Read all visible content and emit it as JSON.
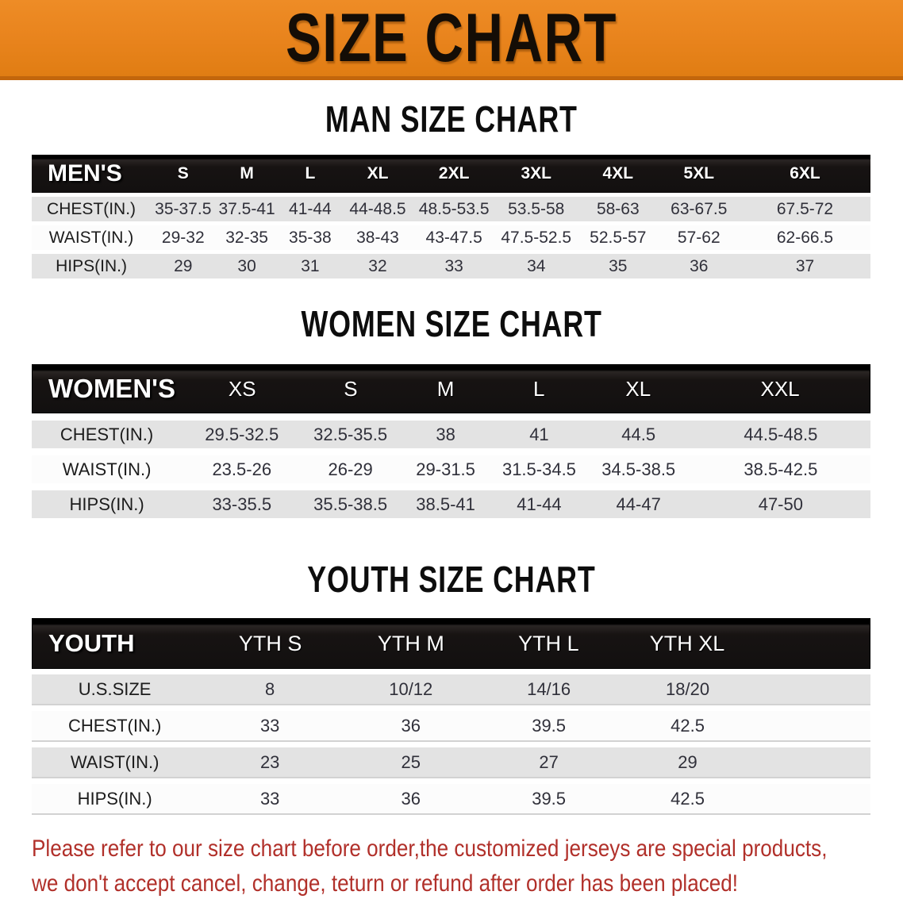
{
  "banner": {
    "title": "SIZE CHART",
    "bg_color": "#E8831C",
    "border_color": "#C2660C",
    "text_color": "#140D06"
  },
  "colors": {
    "header_bar": "#141111",
    "row_gray": "#E3E3E3",
    "row_white": "#FCFCFC",
    "disclaimer_red": "#B1302A"
  },
  "sections": [
    {
      "heading": "MAN SIZE CHART",
      "label": "MEN'S",
      "columns": [
        "S",
        "M",
        "L",
        "XL",
        "2XL",
        "3XL",
        "4XL",
        "5XL",
        "6XL"
      ],
      "rows": [
        {
          "label": "CHEST(IN.)",
          "values": [
            "35-37.5",
            "37.5-41",
            "41-44",
            "44-48.5",
            "48.5-53.5",
            "53.5-58",
            "58-63",
            "63-67.5",
            "67.5-72"
          ]
        },
        {
          "label": "WAIST(IN.)",
          "values": [
            "29-32",
            "32-35",
            "35-38",
            "38-43",
            "43-47.5",
            "47.5-52.5",
            "52.5-57",
            "57-62",
            "62-66.5"
          ]
        },
        {
          "label": "HIPS(IN.)",
          "values": [
            "29",
            "30",
            "31",
            "32",
            "33",
            "34",
            "35",
            "36",
            "37"
          ]
        }
      ]
    },
    {
      "heading": "WOMEN SIZE CHART",
      "label": "WOMEN'S",
      "columns": [
        "XS",
        "S",
        "M",
        "L",
        "XL",
        "XXL"
      ],
      "rows": [
        {
          "label": "CHEST(IN.)",
          "values": [
            "29.5-32.5",
            "32.5-35.5",
            "38",
            "41",
            "44.5",
            "44.5-48.5"
          ]
        },
        {
          "label": "WAIST(IN.)",
          "values": [
            "23.5-26",
            "26-29",
            "29-31.5",
            "31.5-34.5",
            "34.5-38.5",
            "38.5-42.5"
          ]
        },
        {
          "label": "HIPS(IN.)",
          "values": [
            "33-35.5",
            "35.5-38.5",
            "38.5-41",
            "41-44",
            "44-47",
            "47-50"
          ]
        }
      ]
    },
    {
      "heading": "YOUTH SIZE CHART",
      "label": "YOUTH",
      "columns": [
        "YTH S",
        "YTH M",
        "YTH L",
        "YTH XL"
      ],
      "rows": [
        {
          "label": "U.S.SIZE",
          "values": [
            "8",
            "10/12",
            "14/16",
            "18/20"
          ]
        },
        {
          "label": "CHEST(IN.)",
          "values": [
            "33",
            "36",
            "39.5",
            "42.5"
          ]
        },
        {
          "label": "WAIST(IN.)",
          "values": [
            "23",
            "25",
            "27",
            "29"
          ]
        },
        {
          "label": "HIPS(IN.)",
          "values": [
            "33",
            "36",
            "39.5",
            "42.5"
          ]
        }
      ]
    }
  ],
  "footer": {
    "line1": "Please refer to our size chart before order,the customized jerseys are special products,",
    "line2": "we don't accept cancel, change, teturn or refund after order has been placed!"
  }
}
